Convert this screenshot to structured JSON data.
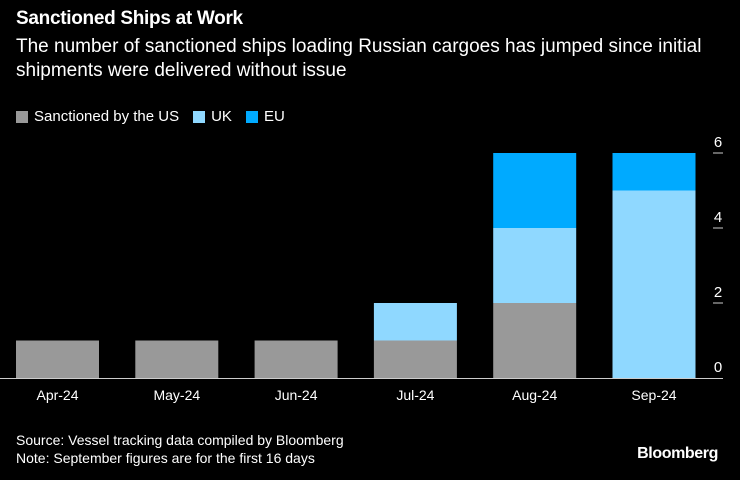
{
  "chart_data": {
    "type": "bar",
    "stacked": true,
    "title": "Sanctioned Ships at Work",
    "subtitle": "The number of sanctioned ships loading Russian cargoes has jumped since initial shipments were delivered without issue",
    "categories": [
      "Apr-24",
      "May-24",
      "Jun-24",
      "Jul-24",
      "Aug-24",
      "Sep-24"
    ],
    "series": [
      {
        "name": "Sanctioned by the US",
        "color": "#999999",
        "values": [
          1,
          1,
          1,
          1,
          2,
          0
        ]
      },
      {
        "name": "UK",
        "color": "#8fd8ff",
        "values": [
          0,
          0,
          0,
          1,
          2,
          5
        ]
      },
      {
        "name": "EU",
        "color": "#00aaff",
        "values": [
          0,
          0,
          0,
          0,
          2,
          1
        ]
      }
    ],
    "ylim": [
      0,
      6
    ],
    "yticks": [
      "0",
      "2",
      "4",
      "6"
    ],
    "ytick_values": [
      0,
      2,
      4,
      6
    ],
    "axis_side": "right",
    "legend_position": "top-left",
    "xlabel": "",
    "ylabel": ""
  },
  "footer": {
    "source": "Source: Vessel tracking data compiled by Bloomberg",
    "note": "Note: September figures are for the first 16 days",
    "logo": "Bloomberg"
  }
}
